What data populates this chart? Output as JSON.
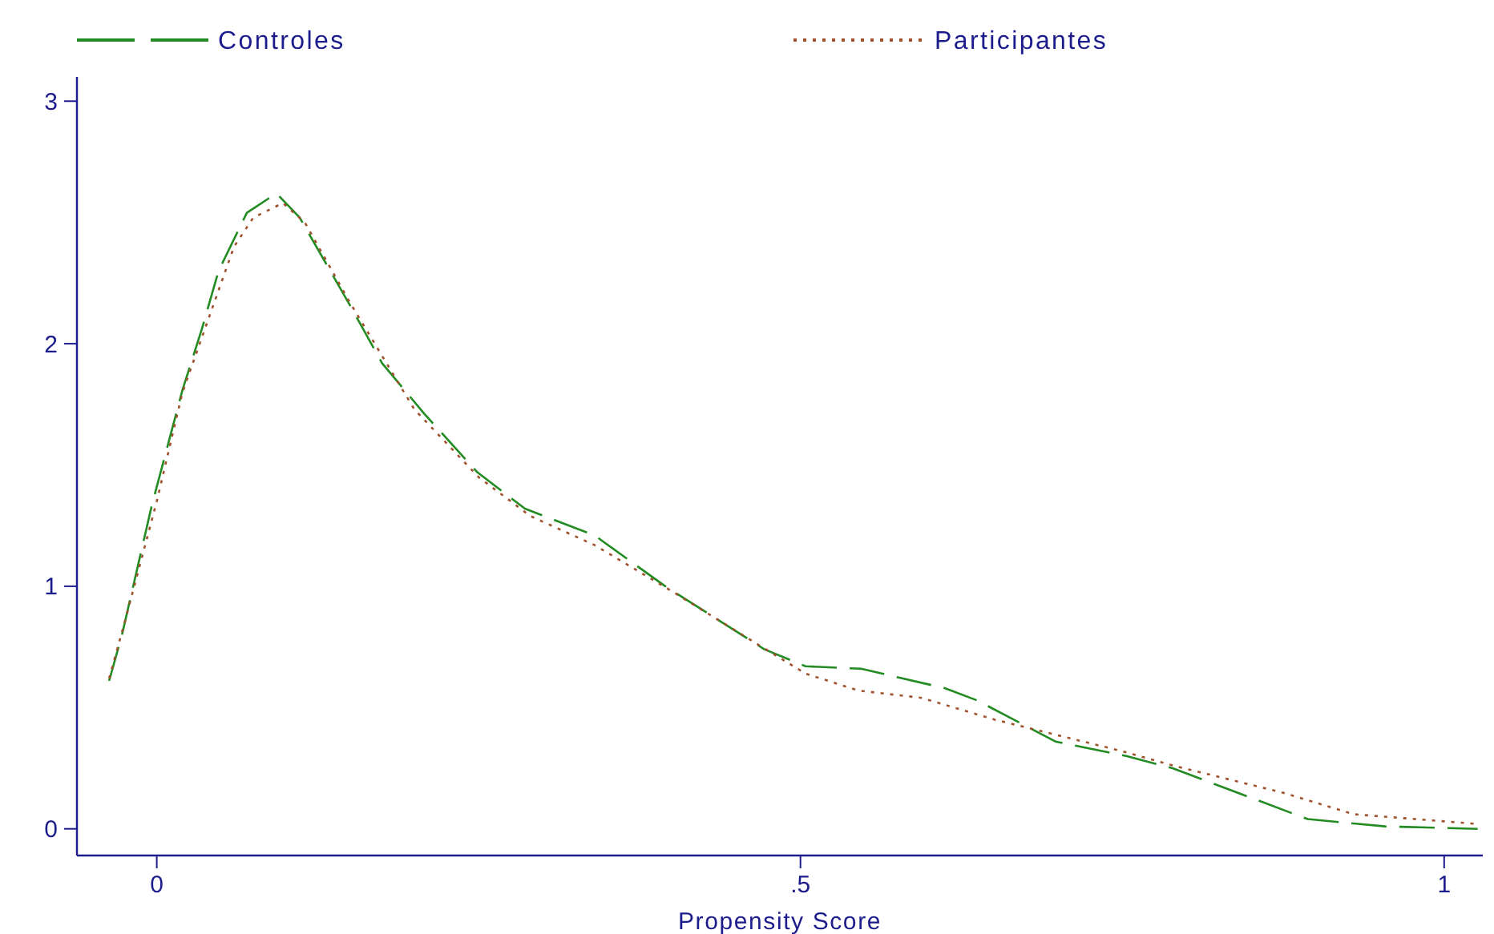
{
  "chart_data": {
    "type": "line",
    "xlabel": "Propensity Score",
    "legend": "top",
    "grid": false,
    "marker": "none",
    "xlim": [
      -0.062,
      1.03
    ],
    "ylim": [
      -0.11,
      3.1
    ],
    "xticks": [
      0,
      {
        "value": 0.5,
        "label": ".5"
      },
      1
    ],
    "yticks": [
      0,
      1,
      2,
      3
    ],
    "series": [
      {
        "name": "Controles",
        "color": "#228b22",
        "line_style": "dashed",
        "x": [
          -0.037,
          -0.027,
          -0.004,
          0.02,
          0.035,
          0.048,
          0.07,
          0.093,
          0.111,
          0.151,
          0.175,
          0.208,
          0.249,
          0.286,
          0.34,
          0.395,
          0.472,
          0.504,
          0.547,
          0.612,
          0.637,
          0.698,
          0.753,
          0.789,
          0.829,
          0.894,
          0.954,
          1.026
        ],
        "values": [
          0.61,
          0.8,
          1.33,
          1.81,
          2.06,
          2.3,
          2.54,
          2.62,
          2.52,
          2.15,
          1.92,
          1.71,
          1.47,
          1.32,
          1.21,
          1.0,
          0.74,
          0.67,
          0.66,
          0.58,
          0.53,
          0.36,
          0.3,
          0.25,
          0.17,
          0.04,
          0.01,
          0.0
        ]
      },
      {
        "name": "Participantes",
        "color": "#a0522d",
        "line_style": "dotted",
        "x": [
          -0.037,
          -0.025,
          0,
          0.02,
          0.04,
          0.06,
          0.075,
          0.098,
          0.115,
          0.15,
          0.2,
          0.25,
          0.29,
          0.34,
          0.4,
          0.47,
          0.504,
          0.545,
          0.594,
          0.651,
          0.75,
          0.79,
          0.874,
          0.93,
          1.026
        ],
        "values": [
          0.62,
          0.85,
          1.35,
          1.8,
          2.1,
          2.4,
          2.52,
          2.58,
          2.5,
          2.17,
          1.73,
          1.45,
          1.29,
          1.17,
          0.98,
          0.75,
          0.64,
          0.57,
          0.54,
          0.45,
          0.32,
          0.26,
          0.15,
          0.06,
          0.02
        ]
      }
    ]
  }
}
